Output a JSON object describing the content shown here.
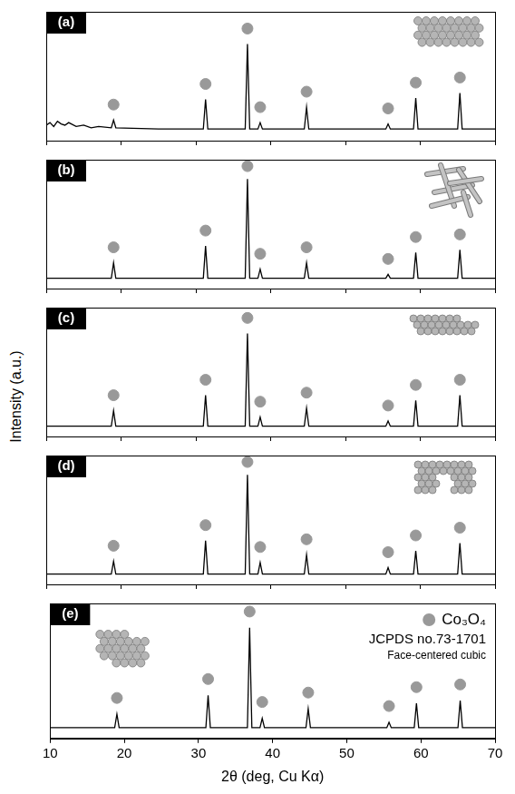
{
  "y_label": "Intensity (a.u.)",
  "chart_data": [
    {
      "type": "line",
      "title": "(a)",
      "x": [
        10,
        10.5,
        11,
        11.5,
        12,
        12.5,
        13,
        14,
        15,
        16,
        17,
        18.7,
        19.0,
        19.3,
        25,
        31.0,
        31.3,
        31.6,
        36.6,
        36.9,
        37.2,
        38.3,
        38.6,
        38.9,
        44.5,
        44.8,
        45.1,
        50,
        55.4,
        55.7,
        56.0,
        59.1,
        59.4,
        59.7,
        65.0,
        65.3,
        65.6,
        70
      ],
      "series": [
        {
          "values": [
            12,
            14,
            11,
            15,
            13,
            12,
            14,
            11,
            12,
            10,
            11,
            10,
            16,
            10,
            9,
            9,
            32,
            9,
            9,
            75,
            9,
            9,
            14,
            9,
            9,
            26,
            9,
            9,
            9,
            13,
            9,
            9,
            33,
            9,
            9,
            37,
            9,
            9
          ],
          "color": "#000000",
          "marker": "none"
        },
        {
          "type": "scatter",
          "x": [
            19.0,
            31.3,
            36.9,
            38.6,
            44.8,
            55.7,
            59.4,
            65.3
          ],
          "values": [
            28,
            44,
            87,
            26,
            38,
            25,
            45,
            49
          ],
          "color": "#999999",
          "marker": "circle"
        }
      ],
      "xlim": [
        10,
        70
      ],
      "xticks": [
        10,
        20,
        30,
        40,
        50,
        60,
        70
      ],
      "ylim": [
        0,
        100
      ],
      "grid": false,
      "tick_labels": false
    },
    {
      "type": "line",
      "title": "(b)",
      "x": [
        10,
        18.7,
        19.0,
        19.3,
        31.0,
        31.3,
        31.6,
        36.6,
        36.9,
        37.2,
        38.3,
        38.6,
        38.9,
        44.5,
        44.8,
        45.1,
        55.4,
        55.7,
        56.0,
        59.1,
        59.4,
        59.7,
        65.0,
        65.3,
        65.6,
        70
      ],
      "series": [
        {
          "values": [
            8,
            8,
            20,
            8,
            8,
            33,
            8,
            8,
            85,
            8,
            8,
            15,
            8,
            8,
            20,
            8,
            8,
            11,
            8,
            8,
            28,
            8,
            8,
            30,
            8,
            8
          ],
          "color": "#000000",
          "marker": "none"
        },
        {
          "type": "scatter",
          "x": [
            19.0,
            31.3,
            36.9,
            38.6,
            44.8,
            55.7,
            59.4,
            65.3
          ],
          "values": [
            32,
            45,
            95,
            27,
            32,
            23,
            40,
            42
          ],
          "color": "#999999",
          "marker": "circle"
        }
      ],
      "xlim": [
        10,
        70
      ],
      "xticks": [
        10,
        20,
        30,
        40,
        50,
        60,
        70
      ],
      "ylim": [
        0,
        100
      ],
      "grid": false,
      "tick_labels": false
    },
    {
      "type": "line",
      "title": "(c)",
      "x": [
        10,
        18.7,
        19.0,
        19.3,
        31.0,
        31.3,
        31.6,
        36.6,
        36.9,
        37.2,
        38.3,
        38.6,
        38.9,
        44.5,
        44.8,
        45.1,
        55.4,
        55.7,
        56.0,
        59.1,
        59.4,
        59.7,
        65.0,
        65.3,
        65.6,
        70
      ],
      "series": [
        {
          "values": [
            8,
            8,
            20,
            8,
            8,
            32,
            8,
            8,
            80,
            8,
            8,
            15,
            8,
            8,
            22,
            8,
            8,
            12,
            8,
            8,
            28,
            8,
            8,
            32,
            8,
            8
          ],
          "color": "#000000",
          "marker": "none"
        },
        {
          "type": "scatter",
          "x": [
            19.0,
            31.3,
            36.9,
            38.6,
            44.8,
            55.7,
            59.4,
            65.3
          ],
          "values": [
            32,
            44,
            92,
            27,
            34,
            24,
            40,
            44
          ],
          "color": "#999999",
          "marker": "circle"
        }
      ],
      "xlim": [
        10,
        70
      ],
      "xticks": [
        10,
        20,
        30,
        40,
        50,
        60,
        70
      ],
      "ylim": [
        0,
        100
      ],
      "grid": false,
      "tick_labels": false
    },
    {
      "type": "line",
      "title": "(d)",
      "x": [
        10,
        18.7,
        19.0,
        19.3,
        31.0,
        31.3,
        31.6,
        36.6,
        36.9,
        37.2,
        38.3,
        38.6,
        38.9,
        44.5,
        44.8,
        45.1,
        55.4,
        55.7,
        56.0,
        59.1,
        59.4,
        59.7,
        65.0,
        65.3,
        65.6,
        70
      ],
      "series": [
        {
          "values": [
            8,
            8,
            18,
            8,
            8,
            34,
            8,
            8,
            85,
            8,
            8,
            17,
            8,
            8,
            23,
            8,
            8,
            13,
            8,
            8,
            26,
            8,
            8,
            32,
            8,
            8
          ],
          "color": "#000000",
          "marker": "none"
        },
        {
          "type": "scatter",
          "x": [
            19.0,
            31.3,
            36.9,
            38.6,
            44.8,
            55.7,
            59.4,
            65.3
          ],
          "values": [
            30,
            46,
            95,
            29,
            35,
            25,
            38,
            44
          ],
          "color": "#999999",
          "marker": "circle"
        }
      ],
      "xlim": [
        10,
        70
      ],
      "xticks": [
        10,
        20,
        30,
        40,
        50,
        60,
        70
      ],
      "ylim": [
        0,
        100
      ],
      "grid": false,
      "tick_labels": false
    },
    {
      "type": "line",
      "title": "(e)",
      "x_label": "2θ (deg, Cu Kα)",
      "x": [
        10,
        18.7,
        19.0,
        19.3,
        31.0,
        31.3,
        31.6,
        36.6,
        36.9,
        37.2,
        38.3,
        38.6,
        38.9,
        44.5,
        44.8,
        45.1,
        55.4,
        55.7,
        56.0,
        59.1,
        59.4,
        59.7,
        65.0,
        65.3,
        65.6,
        70
      ],
      "series": [
        {
          "values": [
            8,
            8,
            18,
            8,
            8,
            32,
            8,
            8,
            82,
            8,
            8,
            15,
            8,
            8,
            22,
            8,
            8,
            12,
            8,
            8,
            26,
            8,
            8,
            28,
            8,
            8
          ],
          "color": "#000000",
          "marker": "none"
        },
        {
          "type": "scatter",
          "name": "Co₃O₄",
          "x": [
            19.0,
            31.3,
            36.9,
            38.6,
            44.8,
            55.7,
            59.4,
            65.3
          ],
          "values": [
            30,
            44,
            94,
            27,
            34,
            24,
            38,
            40
          ],
          "color": "#999999",
          "marker": "circle"
        }
      ],
      "annotations": [
        "JCPDS no.73-1701",
        "Face-centered cubic"
      ],
      "legend": "top-right",
      "xlim": [
        10,
        70
      ],
      "xticks": [
        10,
        20,
        30,
        40,
        50,
        60,
        70
      ],
      "ylim": [
        0,
        100
      ],
      "grid": false,
      "tick_labels": "x"
    }
  ]
}
